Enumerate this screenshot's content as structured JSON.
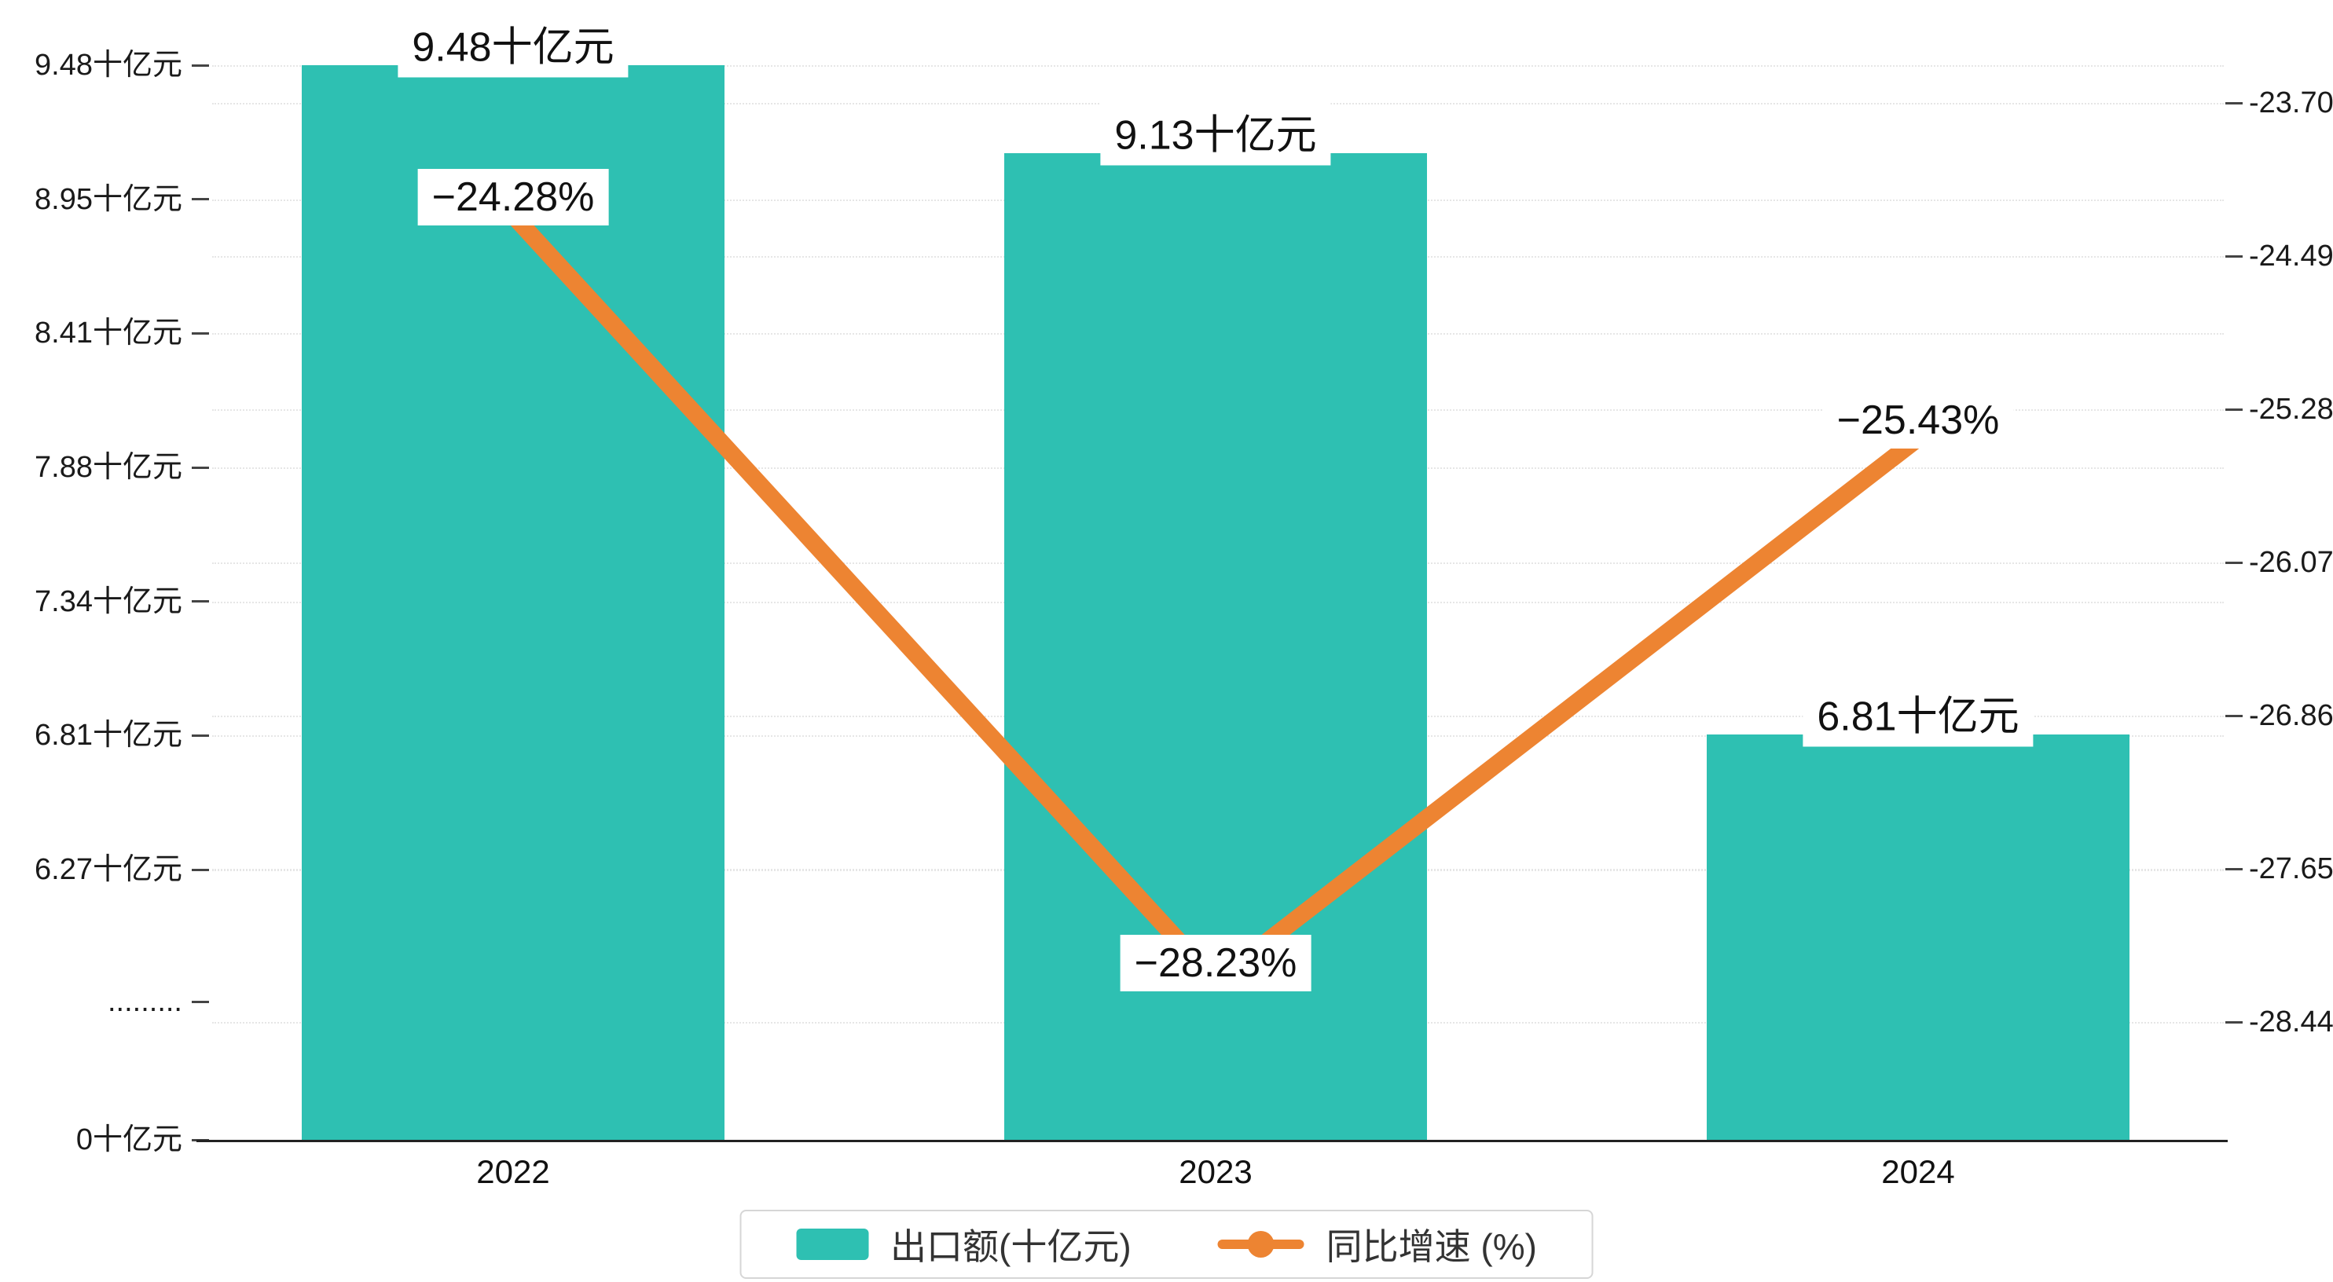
{
  "chart_data": {
    "type": "bar+line",
    "categories": [
      "2022",
      "2023",
      "2024"
    ],
    "series": [
      {
        "name": "出口额(十亿元)",
        "type": "bar",
        "axis": "left",
        "values": [
          9.48,
          9.13,
          6.81
        ],
        "labels": [
          "9.48十亿元",
          "9.13十亿元",
          "6.81十亿元"
        ],
        "color": "#2EC0B2"
      },
      {
        "name": "同比增速 (%)",
        "type": "line",
        "axis": "right",
        "values": [
          -24.28,
          -28.23,
          -25.43
        ],
        "labels": [
          "−24.28%",
          "−28.23%",
          "−25.43%"
        ],
        "color": "#ED8432"
      }
    ],
    "left_axis": {
      "tick_labels": [
        "9.48十亿元",
        "8.95十亿元",
        "8.41十亿元",
        "7.88十亿元",
        "7.34十亿元",
        "6.81十亿元",
        "6.27十亿元",
        ".........",
        "0十亿元"
      ],
      "tick_values": [
        9.48,
        8.95,
        8.41,
        7.88,
        7.34,
        6.81,
        6.27,
        null,
        0
      ],
      "axis_break": true
    },
    "right_axis": {
      "tick_labels": [
        "-23.70",
        "-24.49",
        "-25.28",
        "-26.07",
        "-26.86",
        "-27.65",
        "-28.44"
      ],
      "max": -23.7,
      "min": -28.44
    },
    "x_axis": {
      "tick_labels": [
        "2022",
        "2023",
        "2024"
      ]
    },
    "legend": [
      {
        "label": "出口额(十亿元)",
        "marker": "rect",
        "color": "#2EC0B2"
      },
      {
        "label": "同比增速 (%)",
        "marker": "line-dot",
        "color": "#ED8432"
      }
    ],
    "grid": "dotted horizontal gridlines, white background, legend bottom center"
  }
}
